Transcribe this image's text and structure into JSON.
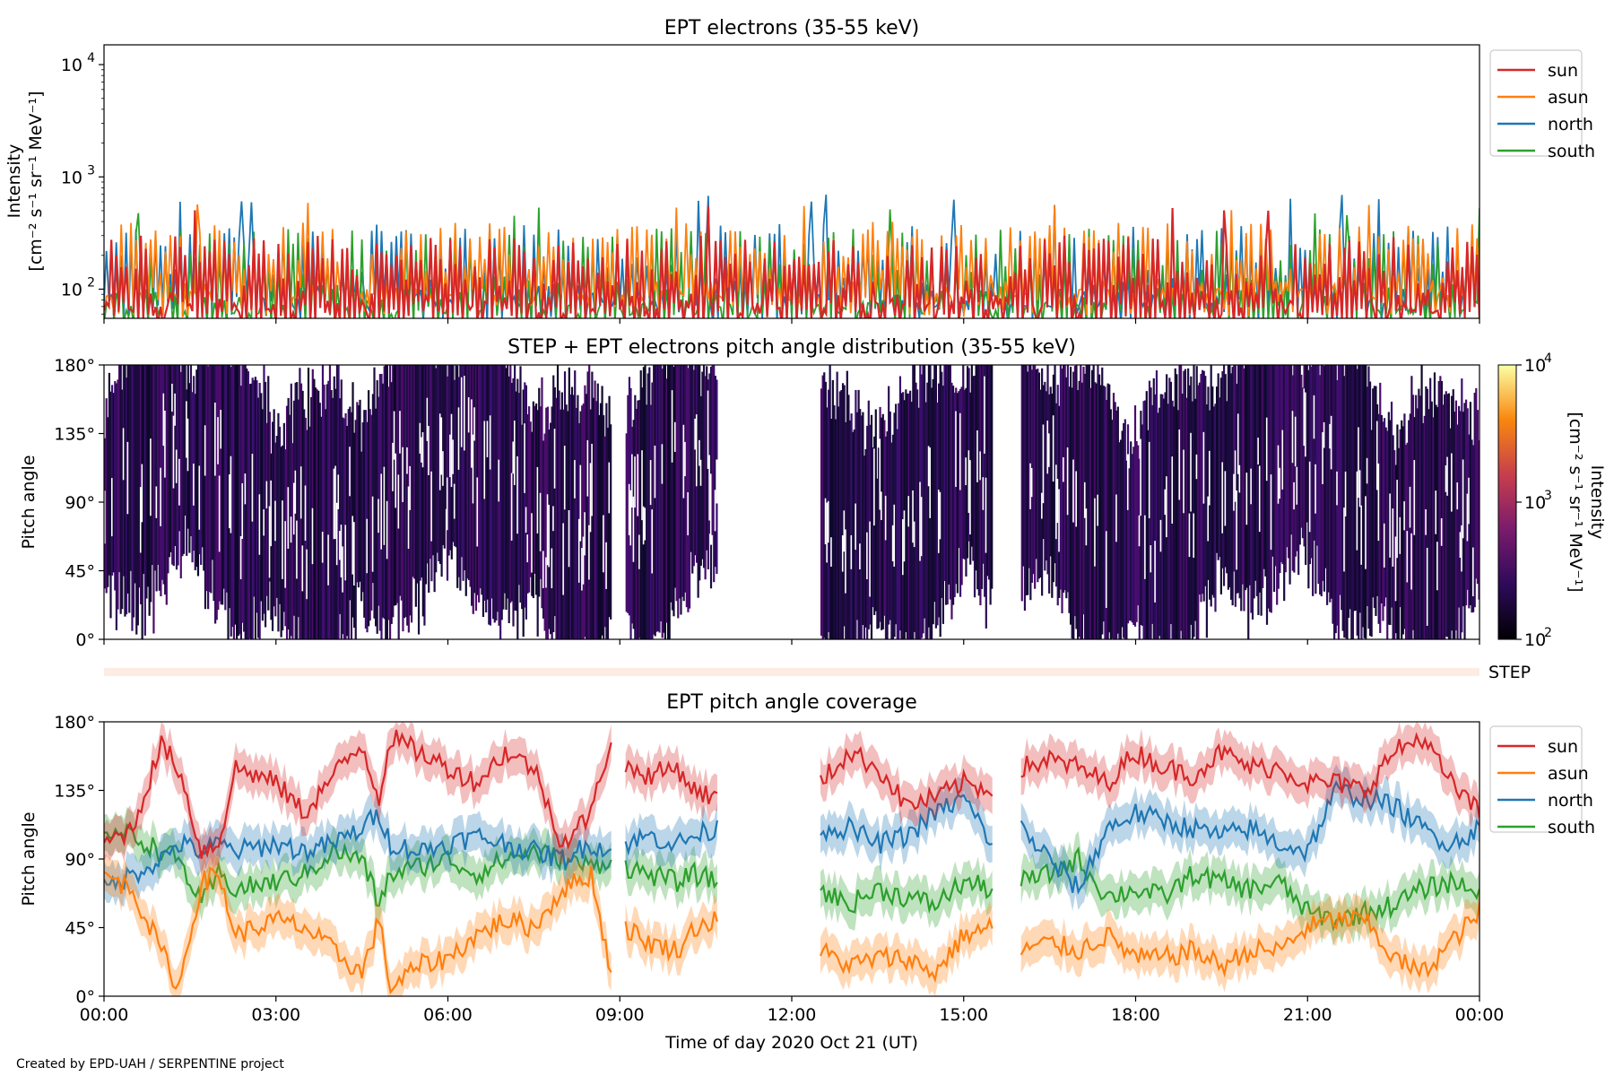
{
  "figure": {
    "xlabel": "Time of day 2020 Oct 21 (UT)",
    "xticks": [
      "00:00",
      "03:00",
      "06:00",
      "09:00",
      "12:00",
      "15:00",
      "18:00",
      "21:00",
      "00:00"
    ],
    "credit": "Created by EPD-UAH / SERPENTINE project"
  },
  "series_colors": {
    "sun": "#d62728",
    "asun": "#ff7f0e",
    "north": "#1f77b4",
    "south": "#2ca02c"
  },
  "chart_data": [
    {
      "type": "line",
      "title": "EPT electrons (35-55 keV)",
      "ylabel": "Intensity",
      "yunits": "[cm⁻² s⁻¹ sr⁻¹ MeV⁻¹]",
      "yscale": "log",
      "ylim": [
        55,
        15000
      ],
      "yticks": [
        "10",
        "10",
        "10"
      ],
      "ytick_exponents": [
        "2",
        "3",
        "4"
      ],
      "xlim_hours": [
        0,
        24
      ],
      "legend": {
        "placement": "outside-right-top",
        "entries": [
          "sun",
          "asun",
          "north",
          "south"
        ]
      },
      "series": [
        {
          "name": "sun",
          "typical_range": [
            60,
            300
          ],
          "peak": 560
        },
        {
          "name": "asun",
          "typical_range": [
            80,
            400
          ],
          "peak": 600
        },
        {
          "name": "north",
          "typical_range": [
            70,
            380
          ],
          "peak": 700
        },
        {
          "name": "south",
          "typical_range": [
            60,
            350
          ],
          "peak": 560
        }
      ]
    },
    {
      "type": "heatmap",
      "title": "STEP + EPT electrons pitch angle distribution (35-55 keV)",
      "ylabel": "Pitch angle",
      "ylim": [
        0,
        180
      ],
      "yticks": [
        "0°",
        "45°",
        "90°",
        "135°",
        "180°"
      ],
      "xlim_hours": [
        0,
        24
      ],
      "colorbar": {
        "label": "Intensity",
        "units": "[cm⁻² s⁻¹ sr⁻¹ MeV⁻¹]",
        "ticks": [
          "10",
          "10",
          "10"
        ],
        "tick_exponents": [
          "2",
          "3",
          "4"
        ],
        "range": [
          100,
          10000
        ],
        "colormap": "inferno"
      },
      "data_segments_hours": [
        [
          0,
          8.85
        ],
        [
          9.1,
          10.7
        ],
        [
          12.5,
          15.5
        ],
        [
          16.0,
          24.0
        ]
      ],
      "step_label": "STEP"
    },
    {
      "type": "line",
      "title": "EPT pitch angle coverage",
      "ylabel": "Pitch angle",
      "ylim": [
        0,
        180
      ],
      "yticks": [
        "0°",
        "45°",
        "90°",
        "135°",
        "180°"
      ],
      "xlim_hours": [
        0,
        24
      ],
      "legend": {
        "placement": "outside-right-top",
        "entries": [
          "sun",
          "asun",
          "north",
          "south"
        ]
      },
      "band_halfwidth_deg": 12,
      "series": [
        {
          "name": "sun",
          "x": [
            0,
            0.5,
            1,
            1.3,
            1.7,
            2,
            2.3,
            3,
            3.5,
            4,
            4.5,
            4.8,
            5,
            5.5,
            6,
            6.5,
            7,
            7.5,
            8,
            8.5,
            8.85,
            9.1,
            9.5,
            10,
            10.3,
            10.7,
            12.5,
            13,
            13.5,
            14,
            14.5,
            15,
            15.5,
            16,
            16.5,
            17,
            17.5,
            18,
            18.5,
            19,
            19.5,
            20,
            20.5,
            21,
            21.5,
            22,
            22.5,
            23,
            23.5,
            24
          ],
          "y": [
            100,
            110,
            165,
            150,
            95,
            100,
            150,
            140,
            120,
            145,
            165,
            130,
            170,
            160,
            150,
            140,
            160,
            150,
            100,
            120,
            170,
            150,
            145,
            150,
            135,
            130,
            140,
            160,
            150,
            125,
            130,
            140,
            135,
            150,
            155,
            150,
            140,
            160,
            150,
            145,
            160,
            150,
            150,
            140,
            140,
            135,
            160,
            170,
            140,
            120
          ]
        },
        {
          "name": "asun",
          "x": [
            0,
            0.5,
            1,
            1.3,
            1.7,
            2,
            2.3,
            3,
            3.5,
            4,
            4.5,
            4.8,
            5,
            5.5,
            6,
            6.5,
            7,
            7.5,
            8,
            8.5,
            8.85,
            9.1,
            9.5,
            10,
            10.3,
            10.7,
            12.5,
            13,
            13.5,
            14,
            14.5,
            15,
            15.5,
            16,
            16.5,
            17,
            17.5,
            18,
            18.5,
            19,
            19.5,
            20,
            20.5,
            21,
            21.5,
            22,
            22.5,
            23,
            23.5,
            24
          ],
          "y": [
            80,
            70,
            30,
            5,
            75,
            80,
            40,
            50,
            45,
            30,
            15,
            50,
            5,
            20,
            25,
            40,
            50,
            45,
            70,
            80,
            15,
            45,
            35,
            30,
            45,
            50,
            30,
            20,
            25,
            25,
            15,
            40,
            45,
            30,
            35,
            30,
            40,
            25,
            25,
            30,
            20,
            30,
            30,
            45,
            50,
            50,
            25,
            15,
            35,
            55
          ]
        },
        {
          "name": "north",
          "x": [
            0,
            0.5,
            1,
            1.3,
            1.7,
            2,
            2.3,
            3,
            3.5,
            4,
            4.5,
            4.8,
            5,
            5.5,
            6,
            6.5,
            7,
            7.5,
            8,
            8.5,
            8.85,
            9.1,
            9.5,
            10,
            10.3,
            10.7,
            12.5,
            13,
            13.5,
            14,
            14.5,
            15,
            15.5,
            16,
            16.5,
            17,
            17.5,
            18,
            18.5,
            19,
            19.5,
            20,
            20.5,
            21,
            21.5,
            22,
            22.5,
            23,
            23.5,
            24
          ],
          "y": [
            70,
            80,
            90,
            100,
            95,
            100,
            95,
            100,
            95,
            100,
            110,
            120,
            100,
            95,
            100,
            105,
            100,
            95,
            90,
            100,
            95,
            100,
            105,
            100,
            105,
            110,
            110,
            110,
            100,
            105,
            120,
            130,
            100,
            110,
            90,
            70,
            110,
            120,
            115,
            110,
            105,
            110,
            100,
            95,
            135,
            130,
            125,
            110,
            100,
            110
          ]
        },
        {
          "name": "south",
          "x": [
            0,
            0.5,
            1,
            1.3,
            1.7,
            2,
            2.3,
            3,
            3.5,
            4,
            4.5,
            4.8,
            5,
            5.5,
            6,
            6.5,
            7,
            7.5,
            8,
            8.5,
            8.85,
            9.1,
            9.5,
            10,
            10.3,
            10.7,
            12.5,
            13,
            13.5,
            14,
            14.5,
            15,
            15.5,
            16,
            16.5,
            17,
            17.5,
            18,
            18.5,
            19,
            19.5,
            20,
            20.5,
            21,
            21.5,
            22,
            22.5,
            23,
            23.5,
            24
          ],
          "y": [
            110,
            105,
            95,
            90,
            60,
            80,
            70,
            75,
            80,
            95,
            90,
            60,
            80,
            85,
            90,
            80,
            90,
            95,
            90,
            85,
            90,
            85,
            80,
            75,
            80,
            75,
            70,
            60,
            70,
            65,
            60,
            75,
            70,
            75,
            80,
            90,
            65,
            70,
            65,
            80,
            75,
            70,
            75,
            55,
            50,
            55,
            60,
            70,
            75,
            70
          ]
        }
      ]
    }
  ]
}
